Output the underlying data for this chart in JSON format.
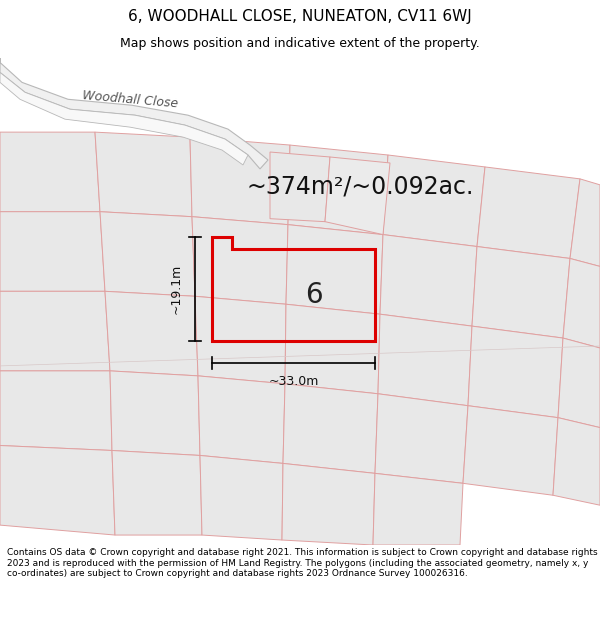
{
  "title": "6, WOODHALL CLOSE, NUNEATON, CV11 6WJ",
  "subtitle": "Map shows position and indicative extent of the property.",
  "area_text": "~374m²/~0.092ac.",
  "property_label": "6",
  "dim_horizontal": "~33.0m",
  "dim_vertical": "~19.1m",
  "street_label": "Woodhall Close",
  "footer": "Contains OS data © Crown copyright and database right 2021. This information is subject to Crown copyright and database rights 2023 and is reproduced with the permission of HM Land Registry. The polygons (including the associated geometry, namely x, y co-ordinates) are subject to Crown copyright and database rights 2023 Ordnance Survey 100026316.",
  "map_bg": "#ffffff",
  "plot_fill": "#e8e8e8",
  "plot_edge": "#e0a0a0",
  "road_fill": "#ffffff",
  "road_edge": "#c8c8c8",
  "property_edge": "#dd0000",
  "title_fontsize": 11,
  "subtitle_fontsize": 9,
  "area_fontsize": 17,
  "label_fontsize": 20,
  "footer_fontsize": 6.5,
  "street_fontsize": 9,
  "dim_fontsize": 9
}
